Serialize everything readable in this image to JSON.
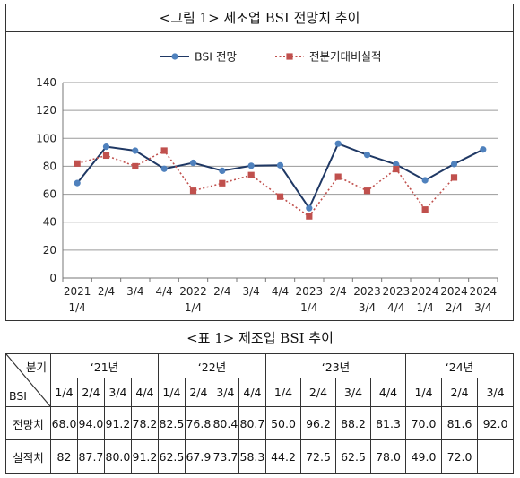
{
  "figure": {
    "title": "<그림 1> 제조업 BSI 전망치 추이"
  },
  "chart_data": {
    "type": "line",
    "title": "<그림 1> 제조업 BSI 전망치 추이",
    "categories": [
      [
        "2021",
        "1/4"
      ],
      [
        "2/4"
      ],
      [
        "3/4"
      ],
      [
        "4/4"
      ],
      [
        "2022",
        "1/4"
      ],
      [
        "2/4"
      ],
      [
        "3/4"
      ],
      [
        "4/4"
      ],
      [
        "2023",
        "1/4"
      ],
      [
        "2/4"
      ],
      [
        "2023",
        "3/4"
      ],
      [
        "2023",
        "4/4"
      ],
      [
        "2024",
        "1/4"
      ],
      [
        "2024",
        "2/4"
      ],
      [
        "2024",
        "3/4"
      ]
    ],
    "series": [
      {
        "name": "BSI 전망",
        "color": "#1f3864",
        "marker_color": "#4f81bd",
        "marker": "circle",
        "line": "solid",
        "values": [
          68.0,
          94.0,
          91.2,
          78.2,
          82.5,
          76.8,
          80.4,
          80.7,
          50.0,
          96.2,
          88.2,
          81.3,
          70.0,
          81.6,
          92.0
        ]
      },
      {
        "name": "전분기대비실적",
        "color": "#c0504d",
        "marker_color": "#c0504d",
        "marker": "square",
        "line": "dotted",
        "values": [
          82,
          87.7,
          80.0,
          91.2,
          62.5,
          67.9,
          73.7,
          58.3,
          44.2,
          72.5,
          62.5,
          78.0,
          49.0,
          72.0,
          null
        ]
      }
    ],
    "ylim": [
      0,
      140
    ],
    "yticks": [
      0,
      20,
      40,
      60,
      80,
      100,
      120,
      140
    ],
    "grid": true,
    "legend": "top-center"
  },
  "table": {
    "title": "<표 1> 제조업 BSI 추이",
    "header_top": "분기",
    "header_bottom": "BSI",
    "years": [
      {
        "label": "‘21년",
        "span": 4
      },
      {
        "label": "‘22년",
        "span": 4
      },
      {
        "label": "‘23년",
        "span": 4
      },
      {
        "label": "‘24년",
        "span": 3
      }
    ],
    "quarters": [
      "1/4",
      "2/4",
      "3/4",
      "4/4",
      "1/4",
      "2/4",
      "3/4",
      "4/4",
      "1/4",
      "2/4",
      "3/4",
      "4/4",
      "1/4",
      "2/4",
      "3/4"
    ],
    "rows": [
      {
        "label": "전망치",
        "values": [
          "68.0",
          "94.0",
          "91.2",
          "78.2",
          "82.5",
          "76.8",
          "80.4",
          "80.7",
          "50.0",
          "96.2",
          "88.2",
          "81.3",
          "70.0",
          "81.6",
          "92.0"
        ]
      },
      {
        "label": "실적치",
        "values": [
          "82",
          "87.7",
          "80.0",
          "91.2",
          "62.5",
          "67.9",
          "73.7",
          "58.3",
          "44.2",
          "72.5",
          "62.5",
          "78.0",
          "49.0",
          "72.0",
          ""
        ]
      }
    ]
  }
}
